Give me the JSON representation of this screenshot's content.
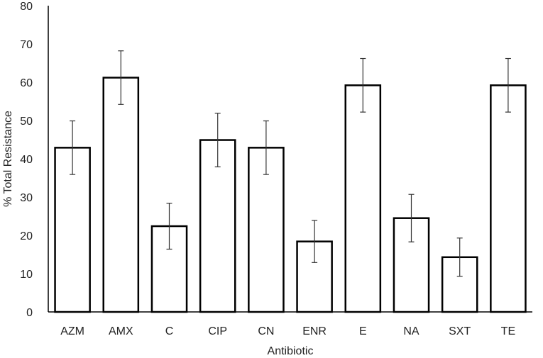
{
  "chart_data": {
    "type": "bar",
    "title": "",
    "xlabel": "Antibiotic",
    "ylabel": "% Total Resistance",
    "ylim": [
      0,
      80
    ],
    "yticks": [
      0,
      10,
      20,
      30,
      40,
      50,
      60,
      70,
      80
    ],
    "grid": false,
    "legend": "none",
    "categories": [
      "AZM",
      "AMX",
      "C",
      "CIP",
      "CN",
      "ENR",
      "E",
      "NA",
      "SXT",
      "TE"
    ],
    "values": [
      42.9,
      61.2,
      22.4,
      44.9,
      42.9,
      18.4,
      59.2,
      24.5,
      14.3,
      59.2
    ],
    "error": [
      7.0,
      7.0,
      6.0,
      7.0,
      7.0,
      5.5,
      7.0,
      6.2,
      5.0,
      7.0
    ],
    "colors": {
      "bar_fill": "#ffffff",
      "bar_stroke": "#000000",
      "axis": "#000000",
      "error_bar": "#333333"
    }
  }
}
